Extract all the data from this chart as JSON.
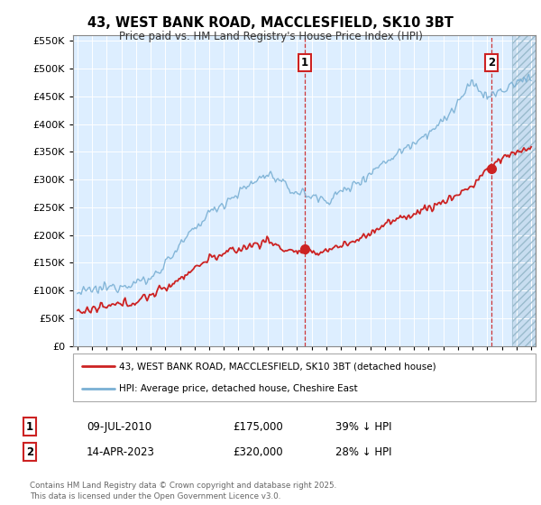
{
  "title": "43, WEST BANK ROAD, MACCLESFIELD, SK10 3BT",
  "subtitle": "Price paid vs. HM Land Registry's House Price Index (HPI)",
  "hpi_label": "HPI: Average price, detached house, Cheshire East",
  "property_label": "43, WEST BANK ROAD, MACCLESFIELD, SK10 3BT (detached house)",
  "hpi_color": "#7ab0d4",
  "property_color": "#cc2222",
  "bg_color": "#ddeeff",
  "sale1_x": 2010.52,
  "sale1_y": 175000,
  "sale2_x": 2023.28,
  "sale2_y": 320000,
  "annotation1": {
    "num": "1",
    "date": "09-JUL-2010",
    "price": "£175,000",
    "pct": "39% ↓ HPI"
  },
  "annotation2": {
    "num": "2",
    "date": "14-APR-2023",
    "price": "£320,000",
    "pct": "28% ↓ HPI"
  },
  "ylim": [
    0,
    560000
  ],
  "xlim_start": 1994.7,
  "xlim_end": 2026.3,
  "yticks": [
    0,
    50000,
    100000,
    150000,
    200000,
    250000,
    300000,
    350000,
    400000,
    450000,
    500000,
    550000
  ],
  "footer": "Contains HM Land Registry data © Crown copyright and database right 2025.\nThis data is licensed under the Open Government Licence v3.0.",
  "hatch_start": 2024.7
}
